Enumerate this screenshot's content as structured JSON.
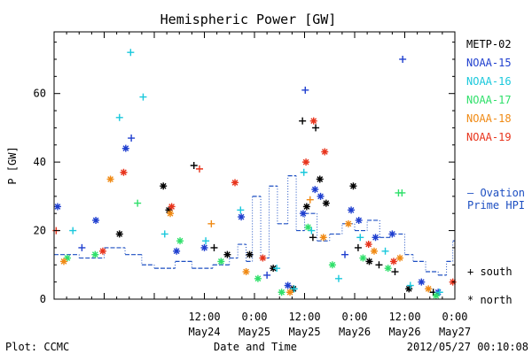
{
  "chart_data": {
    "type": "scatter",
    "title": "Hemispheric Power [GW]",
    "xlabel": "Date and Time",
    "ylabel": "P [GW]",
    "xlim": [
      "2012-05-23 00:00",
      "2012-05-27 00:00"
    ],
    "ylim": [
      0,
      78
    ],
    "x_ticks": [
      {
        "time": "12:00",
        "date": "May24",
        "at": "2012-05-24 12:00"
      },
      {
        "time": "0:00",
        "date": "May25",
        "at": "2012-05-25 00:00"
      },
      {
        "time": "12:00",
        "date": "May25",
        "at": "2012-05-25 12:00"
      },
      {
        "time": "0:00",
        "date": "May26",
        "at": "2012-05-26 00:00"
      },
      {
        "time": "12:00",
        "date": "May26",
        "at": "2012-05-26 12:00"
      },
      {
        "time": "0:00",
        "date": "May27",
        "at": "2012-05-27 00:00"
      }
    ],
    "y_ticks": [
      0,
      20,
      40,
      60
    ],
    "grid": false,
    "legend_position": "right",
    "series": [
      {
        "name": "METP-02",
        "color": "#000000",
        "points": [
          {
            "t": "2012-05-23 15:40",
            "y": 19,
            "m": "star"
          },
          {
            "t": "2012-05-24 02:10",
            "y": 33,
            "m": "star"
          },
          {
            "t": "2012-05-24 03:30",
            "y": 26,
            "m": "star"
          },
          {
            "t": "2012-05-24 09:30",
            "y": 39,
            "m": "plus"
          },
          {
            "t": "2012-05-24 14:20",
            "y": 15,
            "m": "plus"
          },
          {
            "t": "2012-05-24 17:30",
            "y": 13,
            "m": "star"
          },
          {
            "t": "2012-05-24 22:50",
            "y": 13,
            "m": "star"
          },
          {
            "t": "2012-05-25 04:30",
            "y": 9,
            "m": "star"
          },
          {
            "t": "2012-05-25 09:20",
            "y": 3,
            "m": "star"
          },
          {
            "t": "2012-05-25 11:30",
            "y": 52,
            "m": "plus"
          },
          {
            "t": "2012-05-25 12:30",
            "y": 27,
            "m": "star"
          },
          {
            "t": "2012-05-25 14:00",
            "y": 18,
            "m": "plus"
          },
          {
            "t": "2012-05-25 14:40",
            "y": 50,
            "m": "plus"
          },
          {
            "t": "2012-05-25 15:40",
            "y": 35,
            "m": "star"
          },
          {
            "t": "2012-05-25 17:10",
            "y": 28,
            "m": "star"
          },
          {
            "t": "2012-05-25 23:40",
            "y": 33,
            "m": "star"
          },
          {
            "t": "2012-05-26 00:50",
            "y": 15,
            "m": "plus"
          },
          {
            "t": "2012-05-26 03:30",
            "y": 11,
            "m": "star"
          },
          {
            "t": "2012-05-26 05:50",
            "y": 10,
            "m": "plus"
          },
          {
            "t": "2012-05-26 09:40",
            "y": 8,
            "m": "plus"
          },
          {
            "t": "2012-05-26 13:00",
            "y": 3,
            "m": "star"
          },
          {
            "t": "2012-05-26 18:50",
            "y": 2,
            "m": "plus"
          }
        ]
      },
      {
        "name": "NOAA-15",
        "color": "#1f3fcf",
        "points": [
          {
            "t": "2012-05-23 00:50",
            "y": 27,
            "m": "star"
          },
          {
            "t": "2012-05-23 06:40",
            "y": 15,
            "m": "plus"
          },
          {
            "t": "2012-05-23 10:00",
            "y": 23,
            "m": "star"
          },
          {
            "t": "2012-05-23 17:10",
            "y": 44,
            "m": "star"
          },
          {
            "t": "2012-05-23 18:30",
            "y": 47,
            "m": "plus"
          },
          {
            "t": "2012-05-24 05:20",
            "y": 14,
            "m": "star"
          },
          {
            "t": "2012-05-24 12:00",
            "y": 15,
            "m": "star"
          },
          {
            "t": "2012-05-24 20:50",
            "y": 24,
            "m": "star"
          },
          {
            "t": "2012-05-25 03:00",
            "y": 7,
            "m": "plus"
          },
          {
            "t": "2012-05-25 08:00",
            "y": 4,
            "m": "star"
          },
          {
            "t": "2012-05-25 11:40",
            "y": 25,
            "m": "star"
          },
          {
            "t": "2012-05-25 12:10",
            "y": 61,
            "m": "plus"
          },
          {
            "t": "2012-05-25 14:30",
            "y": 32,
            "m": "star"
          },
          {
            "t": "2012-05-25 15:50",
            "y": 30,
            "m": "star"
          },
          {
            "t": "2012-05-25 21:40",
            "y": 13,
            "m": "plus"
          },
          {
            "t": "2012-05-25 23:10",
            "y": 26,
            "m": "star"
          },
          {
            "t": "2012-05-26 01:00",
            "y": 23,
            "m": "star"
          },
          {
            "t": "2012-05-26 05:00",
            "y": 18,
            "m": "star"
          },
          {
            "t": "2012-05-26 09:00",
            "y": 19,
            "m": "star"
          },
          {
            "t": "2012-05-26 11:30",
            "y": 70,
            "m": "plus"
          },
          {
            "t": "2012-05-26 16:00",
            "y": 5,
            "m": "star"
          },
          {
            "t": "2012-05-26 20:00",
            "y": 2,
            "m": "star"
          }
        ]
      },
      {
        "name": "NOAA-16",
        "color": "#19c8dc",
        "points": [
          {
            "t": "2012-05-23 04:30",
            "y": 20,
            "m": "plus"
          },
          {
            "t": "2012-05-23 15:40",
            "y": 53,
            "m": "plus"
          },
          {
            "t": "2012-05-23 18:20",
            "y": 72,
            "m": "plus"
          },
          {
            "t": "2012-05-23 21:20",
            "y": 59,
            "m": "plus"
          },
          {
            "t": "2012-05-24 02:30",
            "y": 19,
            "m": "plus"
          },
          {
            "t": "2012-05-24 12:20",
            "y": 17,
            "m": "plus"
          },
          {
            "t": "2012-05-24 20:40",
            "y": 26,
            "m": "plus"
          },
          {
            "t": "2012-05-25 05:20",
            "y": 9,
            "m": "plus"
          },
          {
            "t": "2012-05-25 09:30",
            "y": 3,
            "m": "plus"
          },
          {
            "t": "2012-05-25 11:50",
            "y": 37,
            "m": "plus"
          },
          {
            "t": "2012-05-25 13:40",
            "y": 20,
            "m": "plus"
          },
          {
            "t": "2012-05-25 20:10",
            "y": 6,
            "m": "plus"
          },
          {
            "t": "2012-05-26 01:20",
            "y": 18,
            "m": "plus"
          },
          {
            "t": "2012-05-26 07:20",
            "y": 14,
            "m": "plus"
          },
          {
            "t": "2012-05-26 13:20",
            "y": 4,
            "m": "plus"
          },
          {
            "t": "2012-05-26 20:20",
            "y": 2,
            "m": "plus"
          }
        ]
      },
      {
        "name": "NOAA-17",
        "color": "#2fe06a",
        "points": [
          {
            "t": "2012-05-23 03:10",
            "y": 12,
            "m": "star"
          },
          {
            "t": "2012-05-23 09:50",
            "y": 13,
            "m": "star"
          },
          {
            "t": "2012-05-23 20:00",
            "y": 28,
            "m": "plus"
          },
          {
            "t": "2012-05-24 06:10",
            "y": 17,
            "m": "star"
          },
          {
            "t": "2012-05-24 16:00",
            "y": 11,
            "m": "star"
          },
          {
            "t": "2012-05-25 00:50",
            "y": 6,
            "m": "star"
          },
          {
            "t": "2012-05-25 06:30",
            "y": 2,
            "m": "star"
          },
          {
            "t": "2012-05-25 12:50",
            "y": 21,
            "m": "star"
          },
          {
            "t": "2012-05-25 18:40",
            "y": 10,
            "m": "star"
          },
          {
            "t": "2012-05-26 02:00",
            "y": 12,
            "m": "star"
          },
          {
            "t": "2012-05-26 08:00",
            "y": 9,
            "m": "star"
          },
          {
            "t": "2012-05-26 10:30",
            "y": 31,
            "m": "plus"
          },
          {
            "t": "2012-05-26 11:20",
            "y": 31,
            "m": "plus"
          },
          {
            "t": "2012-05-26 19:30",
            "y": 1,
            "m": "star"
          }
        ]
      },
      {
        "name": "NOAA-18",
        "color": "#f08a14",
        "points": [
          {
            "t": "2012-05-23 02:20",
            "y": 11,
            "m": "star"
          },
          {
            "t": "2012-05-23 13:30",
            "y": 35,
            "m": "star"
          },
          {
            "t": "2012-05-24 03:50",
            "y": 25,
            "m": "star"
          },
          {
            "t": "2012-05-24 13:40",
            "y": 22,
            "m": "plus"
          },
          {
            "t": "2012-05-24 22:00",
            "y": 8,
            "m": "star"
          },
          {
            "t": "2012-05-25 08:30",
            "y": 2,
            "m": "star"
          },
          {
            "t": "2012-05-25 13:20",
            "y": 29,
            "m": "plus"
          },
          {
            "t": "2012-05-25 16:30",
            "y": 18,
            "m": "star"
          },
          {
            "t": "2012-05-25 22:30",
            "y": 22,
            "m": "star"
          },
          {
            "t": "2012-05-26 04:40",
            "y": 14,
            "m": "star"
          },
          {
            "t": "2012-05-26 10:50",
            "y": 12,
            "m": "star"
          },
          {
            "t": "2012-05-26 17:40",
            "y": 3,
            "m": "star"
          }
        ]
      },
      {
        "name": "NOAA-19",
        "color": "#e8341c",
        "points": [
          {
            "t": "2012-05-23 00:30",
            "y": 20,
            "m": "plus"
          },
          {
            "t": "2012-05-23 11:40",
            "y": 14,
            "m": "star"
          },
          {
            "t": "2012-05-23 16:40",
            "y": 37,
            "m": "star"
          },
          {
            "t": "2012-05-24 04:10",
            "y": 27,
            "m": "star"
          },
          {
            "t": "2012-05-24 10:50",
            "y": 38,
            "m": "plus"
          },
          {
            "t": "2012-05-24 19:20",
            "y": 34,
            "m": "star"
          },
          {
            "t": "2012-05-25 02:00",
            "y": 12,
            "m": "star"
          },
          {
            "t": "2012-05-25 12:20",
            "y": 40,
            "m": "star"
          },
          {
            "t": "2012-05-25 14:10",
            "y": 52,
            "m": "star"
          },
          {
            "t": "2012-05-25 16:50",
            "y": 43,
            "m": "star"
          },
          {
            "t": "2012-05-26 03:20",
            "y": 16,
            "m": "star"
          },
          {
            "t": "2012-05-26 09:20",
            "y": 11,
            "m": "star"
          },
          {
            "t": "2012-05-26 23:30",
            "y": 5,
            "m": "star"
          }
        ]
      }
    ],
    "ovation": {
      "name": "Ovation Prime HPI",
      "color": "#1d4fc2",
      "steps": [
        {
          "t": "2012-05-23 00:00",
          "y": 13
        },
        {
          "t": "2012-05-23 06:00",
          "y": 12
        },
        {
          "t": "2012-05-23 12:00",
          "y": 15
        },
        {
          "t": "2012-05-23 17:00",
          "y": 13
        },
        {
          "t": "2012-05-23 21:00",
          "y": 10
        },
        {
          "t": "2012-05-24 00:00",
          "y": 9
        },
        {
          "t": "2012-05-24 05:00",
          "y": 11
        },
        {
          "t": "2012-05-24 09:00",
          "y": 9
        },
        {
          "t": "2012-05-24 14:00",
          "y": 10
        },
        {
          "t": "2012-05-24 18:00",
          "y": 12
        },
        {
          "t": "2012-05-24 20:00",
          "y": 16
        },
        {
          "t": "2012-05-24 22:00",
          "y": 11
        },
        {
          "t": "2012-05-24 23:30",
          "y": 30
        },
        {
          "t": "2012-05-25 01:30",
          "y": 12
        },
        {
          "t": "2012-05-25 03:30",
          "y": 33
        },
        {
          "t": "2012-05-25 05:30",
          "y": 22
        },
        {
          "t": "2012-05-25 08:00",
          "y": 36
        },
        {
          "t": "2012-05-25 10:00",
          "y": 20
        },
        {
          "t": "2012-05-25 12:00",
          "y": 25
        },
        {
          "t": "2012-05-25 15:00",
          "y": 17
        },
        {
          "t": "2012-05-25 18:00",
          "y": 19
        },
        {
          "t": "2012-05-25 21:00",
          "y": 22
        },
        {
          "t": "2012-05-26 00:00",
          "y": 20
        },
        {
          "t": "2012-05-26 03:00",
          "y": 23
        },
        {
          "t": "2012-05-26 06:00",
          "y": 18
        },
        {
          "t": "2012-05-26 09:00",
          "y": 19
        },
        {
          "t": "2012-05-26 12:00",
          "y": 13
        },
        {
          "t": "2012-05-26 14:00",
          "y": 11
        },
        {
          "t": "2012-05-26 17:00",
          "y": 8
        },
        {
          "t": "2012-05-26 20:00",
          "y": 7
        },
        {
          "t": "2012-05-26 22:00",
          "y": 11
        },
        {
          "t": "2012-05-26 23:30",
          "y": 17
        }
      ]
    },
    "legend": {
      "ovation_label_line1": "— Ovation",
      "ovation_label_line2": "Prime HPI",
      "south_label": "+ south",
      "north_label": "* north"
    }
  },
  "footer": {
    "plot_credit": "Plot: CCMC",
    "timestamp": "2012/05/27 00:10:08"
  }
}
